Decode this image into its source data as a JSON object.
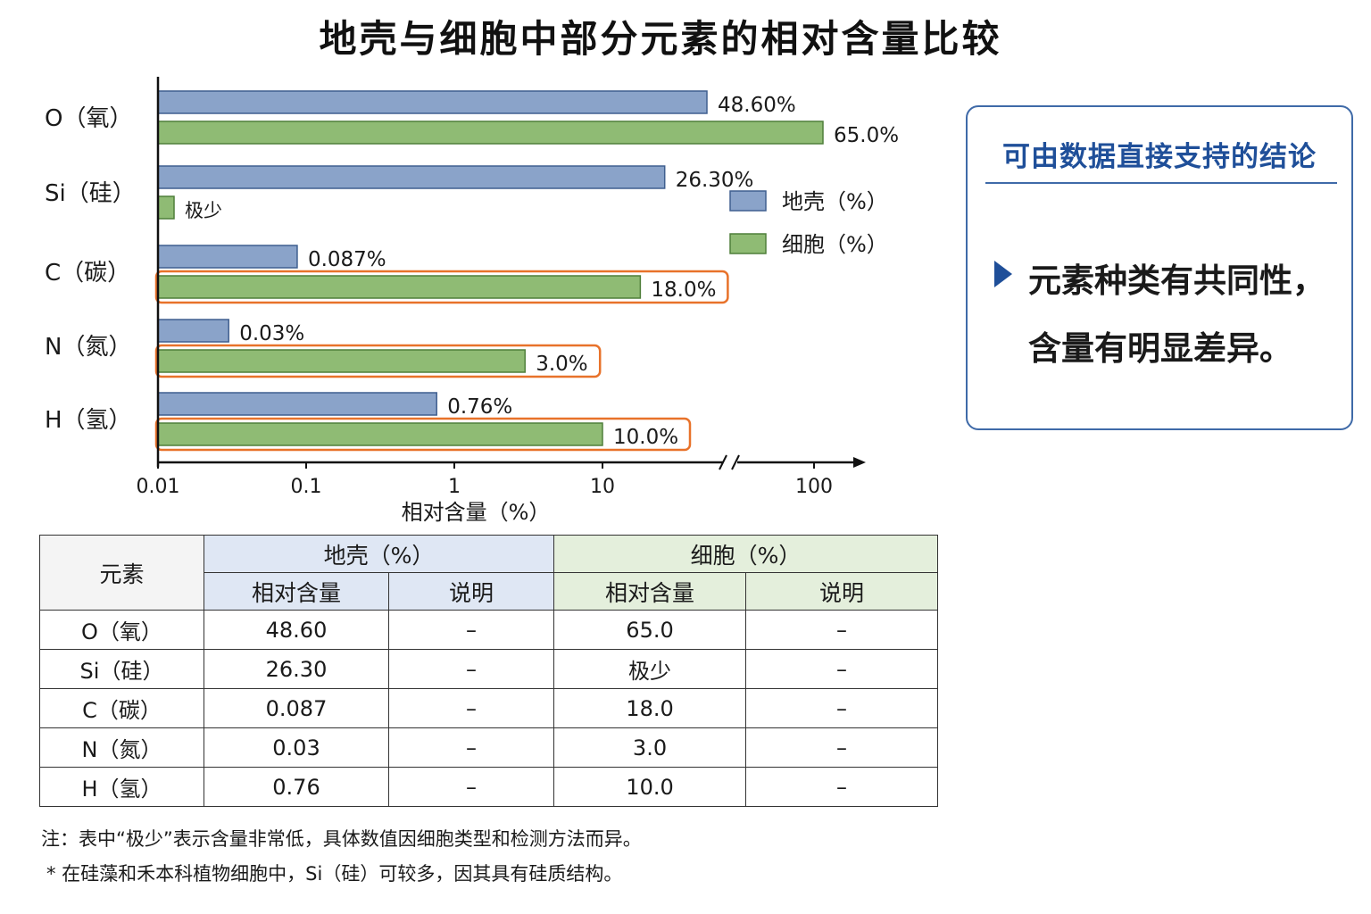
{
  "title": "地壳与细胞中部分元素的相对含量比较",
  "chart_data": {
    "type": "bar",
    "orientation": "horizontal",
    "x_scale": "log",
    "xlabel": "相对含量（%）",
    "xlim": [
      0.01,
      150
    ],
    "axis_break": true,
    "xticks": [
      {
        "value": 0.01,
        "label": "0.01"
      },
      {
        "value": 0.1,
        "label": "0.1"
      },
      {
        "value": 1,
        "label": "1"
      },
      {
        "value": 10,
        "label": "10"
      },
      {
        "value": 100,
        "label": "100"
      }
    ],
    "categories": [
      "O（氧）",
      "Si（硅）",
      "C（碳）",
      "N（氮）",
      "H（氢）"
    ],
    "series": [
      {
        "name": "地壳（%）",
        "color": "#8aa3c9",
        "values": [
          48.6,
          26.3,
          0.087,
          0.03,
          0.76
        ],
        "labels": [
          "48.60%",
          "26.30%",
          "0.087%",
          "0.03%",
          "0.76%"
        ]
      },
      {
        "name": "细胞（%）",
        "color": "#8fbb74",
        "values": [
          65.0,
          0.015,
          18.0,
          3.0,
          10.0
        ],
        "labels": [
          "65.0%",
          "极少",
          "18.0%",
          "3.0%",
          "10.0%"
        ],
        "highlighted": [
          false,
          false,
          true,
          true,
          true
        ]
      }
    ],
    "highlight_color": "#e8722a",
    "legend_position": "right-upper"
  },
  "conclusion": {
    "title": "可由数据直接支持的结论",
    "line1": "元素种类有共同性，",
    "line2": "含量有明显差异。",
    "accent_color": "#1f4f99"
  },
  "table": {
    "element_header": "元素",
    "crust_header": "地壳（%）",
    "cell_header": "细胞（%）",
    "sub_headers": [
      "相对含量",
      "说明",
      "相对含量",
      "说明"
    ],
    "rows": [
      [
        "O（氧）",
        "48.60",
        "–",
        "65.0",
        "–"
      ],
      [
        "Si（硅）",
        "26.30",
        "–",
        "极少",
        "–"
      ],
      [
        "C（碳）",
        "0.087",
        "–",
        "18.0",
        "–"
      ],
      [
        "N（氮）",
        "0.03",
        "–",
        "3.0",
        "–"
      ],
      [
        "H（氢）",
        "0.76",
        "–",
        "10.0",
        "–"
      ]
    ]
  },
  "notes": {
    "note1": "注：表中“极少”表示含量非常低，具体数值因细胞类型和检测方法而异。",
    "note2": "* 在硅藻和禾本科植物细胞中，Si（硅）可较多，因其具有硅质结构。"
  }
}
